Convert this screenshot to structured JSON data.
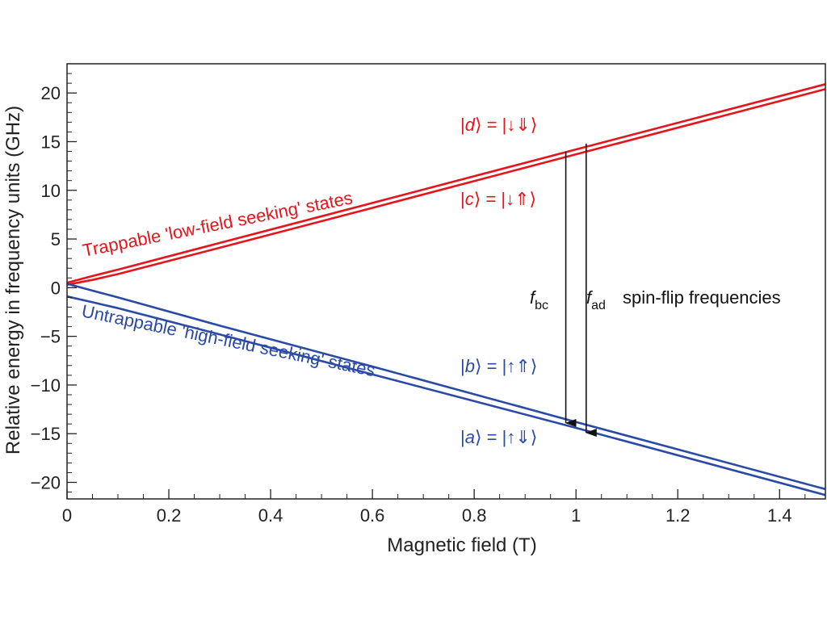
{
  "chart_data": {
    "type": "line",
    "xlabel": "Magnetic field (T)",
    "ylabel": "Relative energy in frequency units (GHz)",
    "xlim": [
      0,
      1.49
    ],
    "ylim": [
      -21.7,
      23
    ],
    "x_ticks": [
      0,
      0.2,
      0.4,
      0.6,
      0.8,
      1,
      1.2,
      1.4
    ],
    "x_tick_labels": [
      "0",
      "0.2",
      "0.4",
      "0.6",
      "0.8",
      "1",
      "1.2",
      "1.4"
    ],
    "y_ticks": [
      20,
      15,
      10,
      5,
      0,
      -5,
      -10,
      -15,
      -20
    ],
    "y_tick_labels": [
      "20",
      "15",
      "10",
      "5",
      "0",
      "−5",
      "−10",
      "−15",
      "−20"
    ],
    "series": [
      {
        "name": "|d⟩ = |↓⇓⟩",
        "x": [
          0,
          0.05,
          0.1,
          0.3,
          0.6,
          1.0,
          1.49
        ],
        "y": [
          0.5,
          1.2,
          1.85,
          4.6,
          8.7,
          14.2,
          20.9
        ],
        "color": "#e8141b"
      },
      {
        "name": "|c⟩ = |↓⇑⟩",
        "x": [
          0,
          0.05,
          0.1,
          0.3,
          0.6,
          1.0,
          1.49
        ],
        "y": [
          0.3,
          0.8,
          1.4,
          4.1,
          8.2,
          13.7,
          20.4
        ],
        "color": "#e8141b"
      },
      {
        "name": "|b⟩ = |↑⇑⟩",
        "x": [
          0,
          0.05,
          0.1,
          0.3,
          0.6,
          1.0,
          1.49
        ],
        "y": [
          0.4,
          -0.3,
          -1.0,
          -3.9,
          -8.1,
          -13.8,
          -20.7
        ],
        "color": "#2a4aa5"
      },
      {
        "name": "|a⟩ = |↑⇓⟩",
        "x": [
          0,
          0.05,
          0.1,
          0.3,
          0.6,
          1.0,
          1.49
        ],
        "y": [
          -0.9,
          -1.5,
          -2.1,
          -4.8,
          -8.9,
          -14.4,
          -21.3
        ],
        "color": "#2a4aa5"
      }
    ],
    "arrows": [
      {
        "label_main": "f",
        "label_sub": "bc",
        "x": 0.98,
        "y_from": 13.95,
        "y_to": -13.9
      },
      {
        "label_main": "f",
        "label_sub": "ad",
        "x": 1.02,
        "y_from": 14.8,
        "y_to": -14.9
      }
    ],
    "annotations": {
      "upper_group": "Trappable 'low-field seeking' states",
      "lower_group": "Untrappable 'high-field seeking' states",
      "spin_flip": "spin-flip frequencies",
      "state_d": {
        "pre": "|",
        "letter": "d",
        "post": "⟩ = |↓⇓⟩"
      },
      "state_c": {
        "pre": "|",
        "letter": "c",
        "post": "⟩ = |↓⇑⟩"
      },
      "state_b": {
        "pre": "|",
        "letter": "b",
        "post": "⟩ = |↑⇑⟩"
      },
      "state_a": {
        "pre": "|",
        "letter": "a",
        "post": "⟩ = |↑⇓⟩"
      }
    },
    "colors": {
      "upper": "#e8141b",
      "lower": "#2a4aa5",
      "axis": "#222222"
    },
    "grid": false,
    "legend": "none"
  }
}
